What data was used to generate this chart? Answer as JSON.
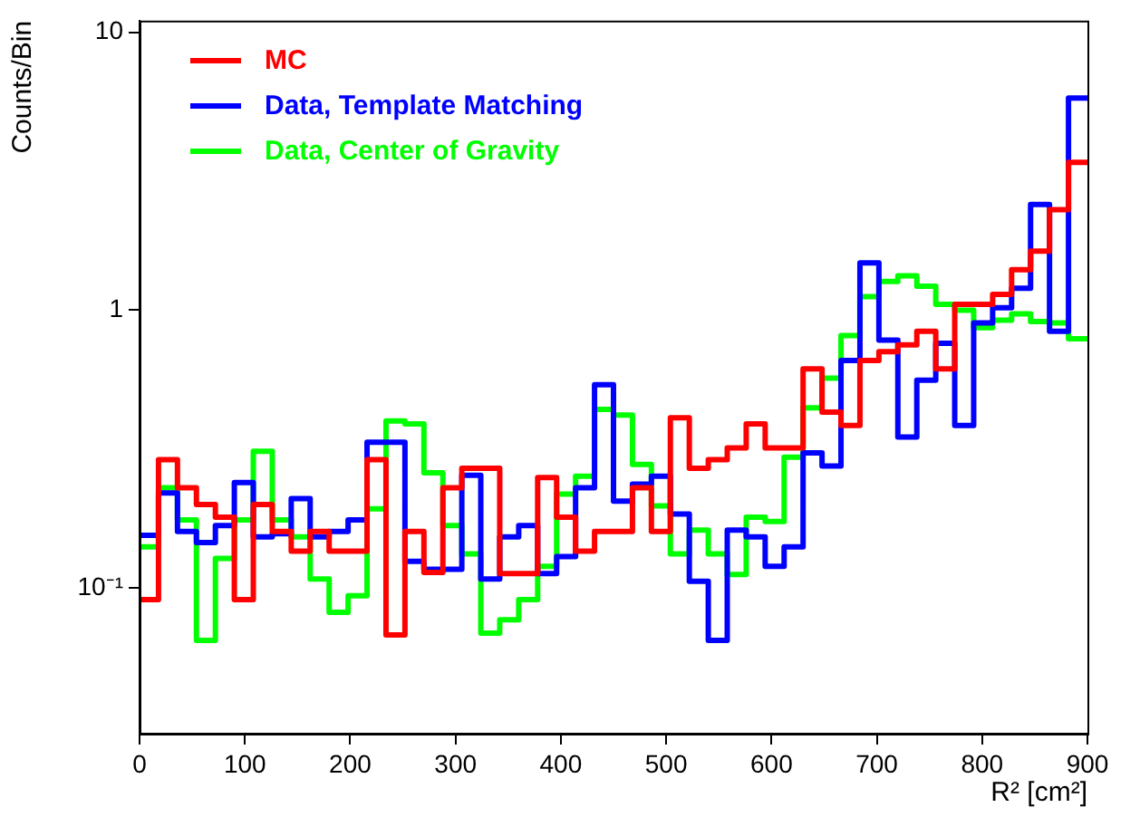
{
  "chart_data": {
    "type": "histogram",
    "xlabel": "R² [cm²]",
    "ylabel": "Counts/Bin",
    "log": "y",
    "legend": "top left",
    "grid": false,
    "bins": [
      0,
      18,
      36,
      54,
      72,
      90,
      108,
      126,
      144,
      162,
      180,
      198,
      216,
      234,
      252,
      270,
      288,
      306,
      324,
      342,
      360,
      378,
      396,
      414,
      432,
      450,
      468,
      486,
      504,
      522,
      540,
      558,
      576,
      594,
      612,
      630,
      648,
      666,
      684,
      702,
      720,
      738,
      756,
      774,
      792,
      810,
      828,
      846,
      864,
      882,
      900
    ],
    "xlim": [
      0,
      900
    ],
    "xticks": [
      0,
      100,
      200,
      300,
      400,
      500,
      600,
      700,
      800,
      900
    ],
    "ylim": [
      0.03,
      11
    ],
    "yticks": [
      {
        "value": 0.1,
        "label": "10⁻¹"
      },
      1,
      10
    ],
    "series": [
      {
        "name": "MC",
        "color": "#ff0000",
        "values": [
          0.091,
          0.29,
          0.23,
          0.2,
          0.18,
          0.091,
          0.2,
          0.16,
          0.136,
          0.16,
          0.136,
          0.136,
          0.29,
          0.068,
          0.16,
          0.114,
          0.23,
          0.27,
          0.27,
          0.113,
          0.113,
          0.25,
          0.18,
          0.136,
          0.16,
          0.16,
          0.23,
          0.16,
          0.41,
          0.27,
          0.29,
          0.32,
          0.39,
          0.32,
          0.32,
          0.615,
          0.43,
          0.385,
          0.66,
          0.71,
          0.75,
          0.84,
          0.615,
          1.05,
          1.05,
          1.14,
          1.4,
          1.63,
          2.3,
          3.4
        ]
      },
      {
        "name": "Data, Template Matching",
        "color": "#0000ff",
        "values": [
          0.155,
          0.22,
          0.16,
          0.146,
          0.168,
          0.24,
          0.153,
          0.157,
          0.21,
          0.153,
          0.16,
          0.176,
          0.335,
          0.335,
          0.125,
          0.117,
          0.117,
          0.255,
          0.108,
          0.153,
          0.168,
          0.113,
          0.13,
          0.23,
          0.54,
          0.206,
          0.237,
          0.253,
          0.185,
          0.106,
          0.065,
          0.162,
          0.153,
          0.12,
          0.141,
          0.307,
          0.275,
          0.66,
          1.48,
          0.78,
          0.35,
          0.56,
          0.76,
          0.385,
          0.9,
          1.02,
          1.2,
          2.4,
          0.84,
          5.8
        ]
      },
      {
        "name": "Data, Center of Gravity",
        "color": "#00ff00",
        "values": [
          0.141,
          0.23,
          0.176,
          0.065,
          0.128,
          0.176,
          0.311,
          0.176,
          0.153,
          0.108,
          0.082,
          0.094,
          0.193,
          0.4,
          0.39,
          0.26,
          0.168,
          0.133,
          0.069,
          0.077,
          0.091,
          0.12,
          0.218,
          0.253,
          0.44,
          0.42,
          0.279,
          0.198,
          0.133,
          0.162,
          0.133,
          0.112,
          0.18,
          0.174,
          0.296,
          0.446,
          0.57,
          0.81,
          1.12,
          1.27,
          1.33,
          1.22,
          1.05,
          1.0,
          0.865,
          0.92,
          0.97,
          0.91,
          0.9,
          0.79
        ]
      }
    ]
  }
}
